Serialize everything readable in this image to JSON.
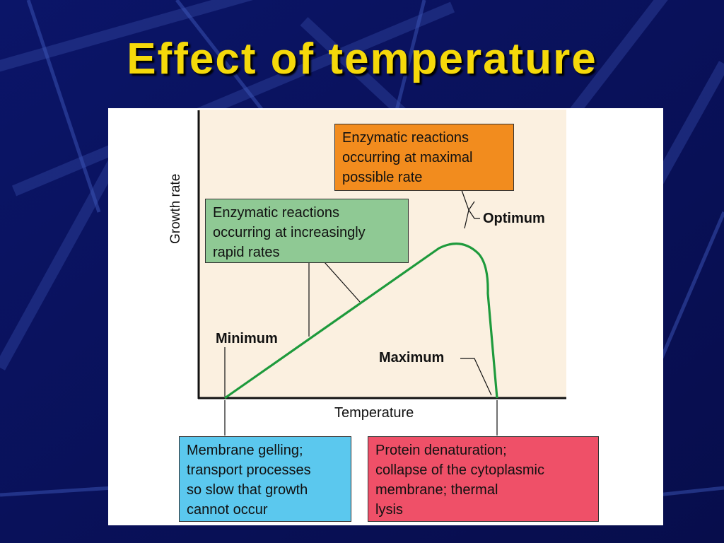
{
  "slide": {
    "title": "Effect of temperature",
    "background_color": "#0a1260"
  },
  "diagram": {
    "axis_labels": {
      "y": "Growth rate",
      "x": "Temperature"
    },
    "points": {
      "minimum": "Minimum",
      "optimum": "Optimum",
      "maximum": "Maximum"
    },
    "boxes": {
      "optimum": {
        "lines": [
          "Enzymatic reactions",
          "occurring at maximal",
          "possible rate"
        ],
        "color": "#f28c1e"
      },
      "rising": {
        "lines": [
          "Enzymatic reactions",
          "occurring at increasingly",
          "rapid rates"
        ],
        "color": "#8fc994"
      },
      "minimum": {
        "lines": [
          "Membrane gelling;",
          "transport processes",
          "so slow that growth",
          "cannot occur"
        ],
        "color": "#5bc8ee"
      },
      "maximum": {
        "lines": [
          "Protein denaturation;",
          "collapse of the cytoplasmic",
          "membrane; thermal",
          "lysis"
        ],
        "color": "#ef5068"
      }
    },
    "curve_color": "#1e9a3c"
  }
}
